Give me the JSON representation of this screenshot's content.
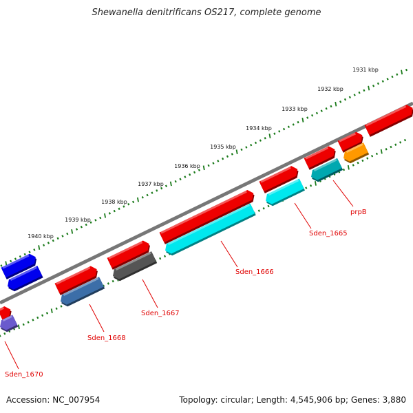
{
  "title": "Shewanella denitrificans OS217, complete genome",
  "footer": {
    "accession": "Accession: NC_007954",
    "topology": "Topology: circular; Length: 4,545,906 bp; Genes: 3,880"
  },
  "scale_ticks": [
    "1931 kbp",
    "1932 kbp",
    "1933 kbp",
    "1934 kbp",
    "1935 kbp",
    "1936 kbp",
    "1937 kbp",
    "1938 kbp",
    "1939 kbp",
    "1940 kbp"
  ],
  "gene_labels": [
    "prpB",
    "Sden_1665",
    "Sden_1666",
    "Sden_1667",
    "Sden_1668",
    "Sden_1670"
  ],
  "colors": {
    "backbone": "#777777",
    "tick_green": "#1a7a1a",
    "label_red": "#e00000",
    "red": "#ee0000",
    "cyan": "#00e8ee",
    "teal": "#00a8b0",
    "orange": "#ff9900",
    "gray": "#555555",
    "steelblue": "#3c6ea8",
    "blue": "#0000ee",
    "purple": "#6a5acd"
  }
}
